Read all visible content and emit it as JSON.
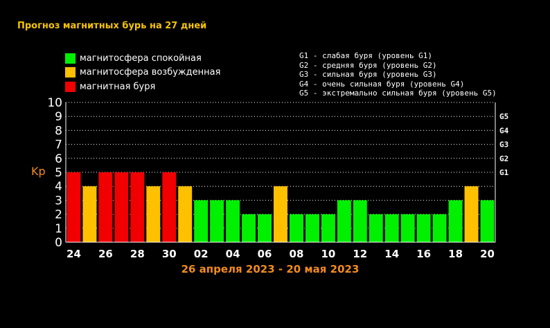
{
  "title": "Прогноз магнитных бурь на 27 дней",
  "legend": [
    {
      "label": "магнитосфера спокойная",
      "color": "#00f000"
    },
    {
      "label": "магнитосфера возбужденная",
      "color": "#ffc000"
    },
    {
      "label": "магнитная буря",
      "color": "#f00000"
    }
  ],
  "g_levels": [
    "G1 - слабая буря (уровень G1)",
    "G2 - средняя буря (уровень G2)",
    "G3 - сильная буря (уровень G3)",
    "G4 - очень сильная буря (уровень G4)",
    "G5 - экстремально сильная буря (уровень G5)"
  ],
  "colors": {
    "quiet": "#00f000",
    "excited": "#ffc000",
    "storm": "#f00000",
    "axis_text": "#ffffff",
    "accent": "#f28b1e",
    "title": "#f5c400"
  },
  "chart_data": {
    "type": "bar",
    "title": "Прогноз магнитных бурь на 27 дней",
    "subtitle": "26 апреля 2023 - 20 мая 2023",
    "ylabel": "Kp",
    "xlabel": "",
    "ylim": [
      0,
      10
    ],
    "y_ticks": [
      "0",
      "1",
      "2",
      "3",
      "4",
      "5",
      "6",
      "7",
      "8",
      "9",
      "10"
    ],
    "right_ticks": [
      {
        "label": "G1",
        "value": 5
      },
      {
        "label": "G2",
        "value": 6
      },
      {
        "label": "G3",
        "value": 7
      },
      {
        "label": "G4",
        "value": 8
      },
      {
        "label": "G5",
        "value": 9
      }
    ],
    "x_tick_labels": [
      "24",
      "26",
      "28",
      "30",
      "02",
      "04",
      "06",
      "08",
      "10",
      "12",
      "14",
      "16",
      "18",
      "20"
    ],
    "grid": "dotted horizontal",
    "values": [
      5,
      4,
      5,
      5,
      5,
      4,
      5,
      4,
      3,
      3,
      3,
      2,
      2,
      4,
      2,
      2,
      2,
      3,
      3,
      2,
      2,
      2,
      2,
      2,
      3,
      4,
      3
    ],
    "levels": [
      "storm",
      "excited",
      "storm",
      "storm",
      "storm",
      "excited",
      "storm",
      "excited",
      "quiet",
      "quiet",
      "quiet",
      "quiet",
      "quiet",
      "excited",
      "quiet",
      "quiet",
      "quiet",
      "quiet",
      "quiet",
      "quiet",
      "quiet",
      "quiet",
      "quiet",
      "quiet",
      "quiet",
      "excited",
      "quiet"
    ]
  }
}
